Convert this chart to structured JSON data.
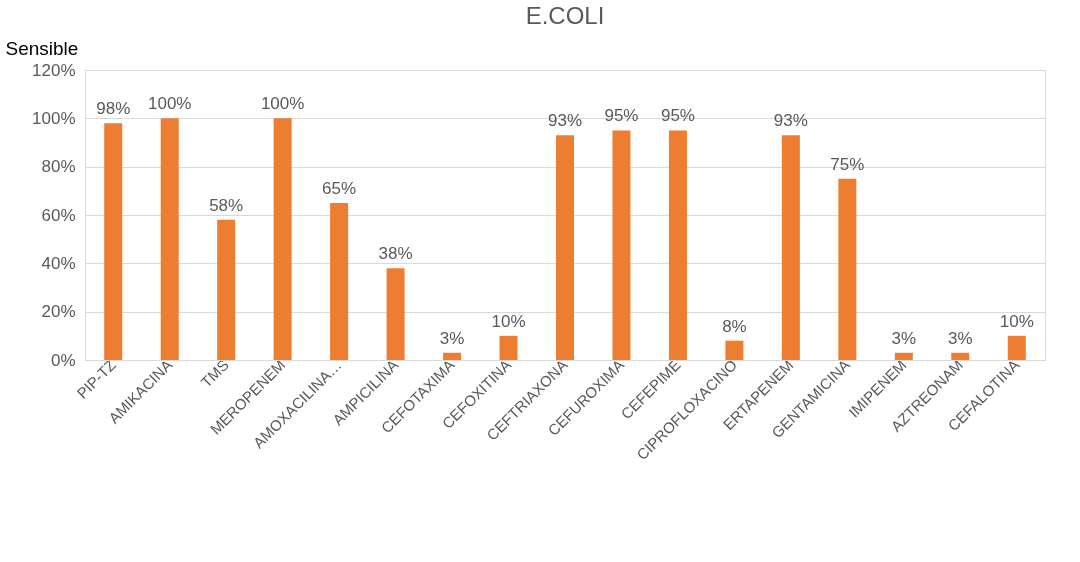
{
  "chart_data": {
    "type": "bar",
    "title": "E.COLI",
    "ylabel": "Sensible",
    "categories": [
      "PIP-TZ",
      "AMIKACINA",
      "TMS",
      "MEROPENEM",
      "AMOXACILINA…",
      "AMPICILINA",
      "CEFOTAXIMA",
      "CEFOXITINA",
      "CEFTRIAXONA",
      "CEFUROXIMA",
      "CEFEPIME",
      "CIPROFLOXACINO",
      "ERTAPENEM",
      "GENTAMICINA",
      "IMIPENEM",
      "AZTREONAM",
      "CEFALOTINA"
    ],
    "values": [
      98,
      100,
      58,
      100,
      65,
      38,
      3,
      10,
      93,
      95,
      95,
      8,
      93,
      75,
      3,
      3,
      10
    ],
    "value_labels": [
      "98%",
      "100%",
      "58%",
      "100%",
      "65%",
      "38%",
      "3%",
      "10%",
      "93%",
      "95%",
      "95%",
      "8%",
      "93%",
      "75%",
      "3%",
      "3%",
      "10%"
    ],
    "color": "#ed7d31",
    "ylim": [
      0,
      120
    ],
    "yticks": [
      {
        "value": 0,
        "label": "0%"
      },
      {
        "value": 20,
        "label": "20%"
      },
      {
        "value": 40,
        "label": "40%"
      },
      {
        "value": 60,
        "label": "60%"
      },
      {
        "value": 80,
        "label": "80%"
      },
      {
        "value": 100,
        "label": "100%"
      },
      {
        "value": 120,
        "label": "120%"
      }
    ],
    "grid": "y"
  }
}
